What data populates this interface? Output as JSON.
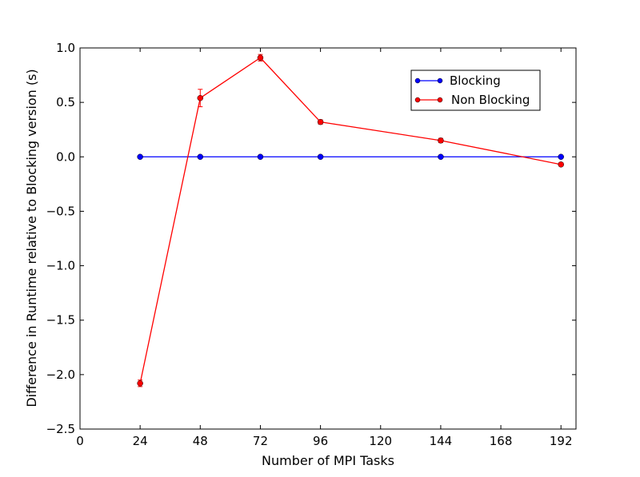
{
  "chart_data": {
    "type": "line",
    "title": "",
    "xlabel": "Number of MPI Tasks",
    "ylabel": "Difference in Runtime relative to Blocking version (s)",
    "xlim": [
      0,
      198
    ],
    "ylim": [
      -2.5,
      1.0
    ],
    "x_ticks": [
      0,
      24,
      48,
      72,
      96,
      120,
      144,
      168,
      192
    ],
    "y_ticks": [
      -2.5,
      -2.0,
      -1.5,
      -1.0,
      -0.5,
      0.0,
      0.5,
      1.0
    ],
    "x_tick_labels": [
      "0",
      "24",
      "48",
      "72",
      "96",
      "120",
      "144",
      "168",
      "192"
    ],
    "y_tick_labels": [
      "−2.5",
      "−2.0",
      "−1.5",
      "−1.0",
      "−0.5",
      "0.0",
      "0.5",
      "1.0"
    ],
    "grid": false,
    "legend_position": "top-right",
    "x": [
      24,
      48,
      72,
      96,
      144,
      192
    ],
    "series": [
      {
        "name": "Blocking",
        "color": "#0000ff",
        "values": [
          0.0,
          0.0,
          0.0,
          0.0,
          0.0,
          0.0
        ],
        "errors": [
          0,
          0,
          0,
          0,
          0,
          0
        ]
      },
      {
        "name": "Non Blocking",
        "color": "#ff0000",
        "values": [
          -2.08,
          0.54,
          0.91,
          0.32,
          0.15,
          -0.07
        ],
        "errors": [
          0.03,
          0.08,
          0.03,
          0.02,
          0.02,
          0.015
        ]
      }
    ]
  }
}
